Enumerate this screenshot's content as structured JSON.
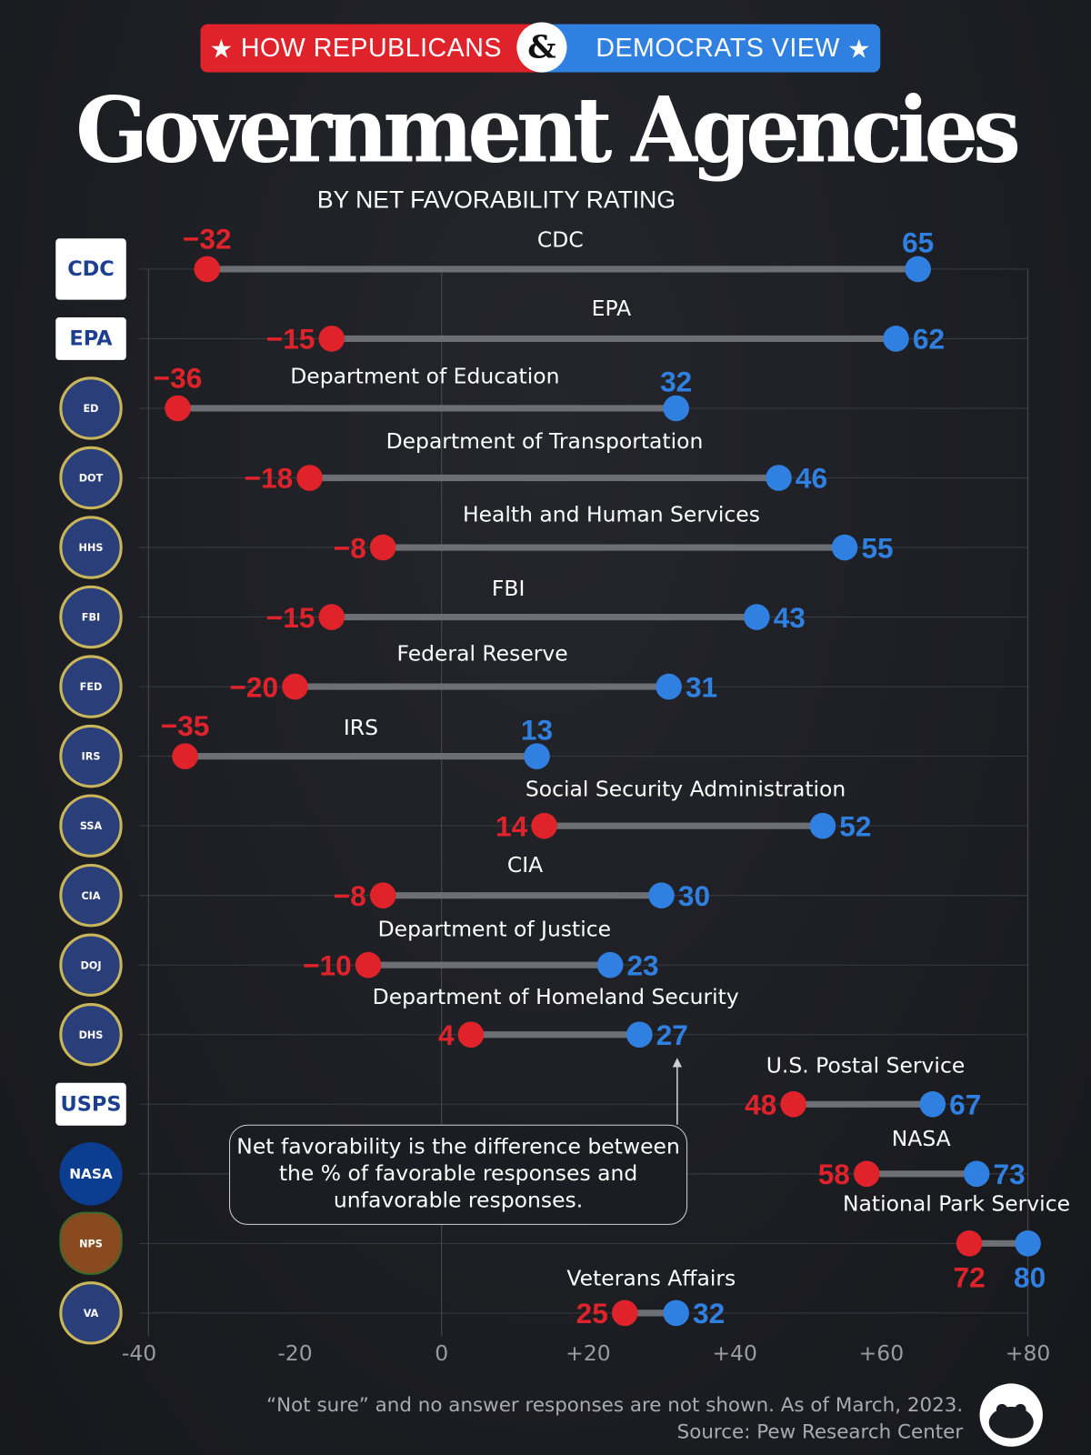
{
  "header": {
    "banner_left": "HOW REPUBLICANS",
    "banner_amp": "&",
    "banner_right": "DEMOCRATS VIEW",
    "title": "Government Agencies",
    "subtitle": "BY NET FAVORABILITY RATING"
  },
  "colors": {
    "republican": "#e0232b",
    "democrat": "#2f80e0",
    "bar": "#6e6f74",
    "background": "#1c1d22"
  },
  "note": "Net favorability is the difference between the % of favorable responses and unfavorable responses.",
  "footer": {
    "line1": "“Not sure” and no answer responses are not shown. As of March, 2023.",
    "line2": "Source: Pew Research Center"
  },
  "chart_data": {
    "type": "dumbbell",
    "title": "Government Agencies",
    "subtitle": "BY NET FAVORABILITY RATING",
    "xlim": [
      -40,
      80
    ],
    "xticks": [
      "-40",
      "-20",
      "0",
      "+20",
      "+40",
      "+60",
      "+80"
    ],
    "xtick_values": [
      -40,
      -20,
      0,
      20,
      40,
      60,
      80
    ],
    "legend": [
      "Republicans",
      "Democrats"
    ],
    "grid": true,
    "categories": [
      "CDC",
      "EPA",
      "Department of Education",
      "Department of  Transportation",
      "Health and Human Services",
      "FBI",
      "Federal Reserve",
      "IRS",
      "Social Security Administration",
      "CIA",
      "Department of Justice",
      "Department of Homeland Security",
      "U.S. Postal Service",
      "NASA",
      "National Park Service",
      "Veterans Affairs"
    ],
    "logos": [
      "CDC",
      "EPA",
      "ED",
      "DOT",
      "HHS",
      "FBI",
      "FED",
      "IRS",
      "SSA",
      "CIA",
      "DOJ",
      "DHS",
      "USPS",
      "NASA",
      "NPS",
      "VA"
    ],
    "series": [
      {
        "name": "Republicans",
        "values": [
          -32,
          -15,
          -36,
          -18,
          -8,
          -15,
          -20,
          -35,
          14,
          -8,
          -10,
          4,
          48,
          58,
          72,
          25
        ]
      },
      {
        "name": "Democrats",
        "values": [
          65,
          62,
          32,
          46,
          55,
          43,
          31,
          13,
          52,
          30,
          23,
          27,
          67,
          73,
          80,
          32
        ]
      }
    ]
  }
}
